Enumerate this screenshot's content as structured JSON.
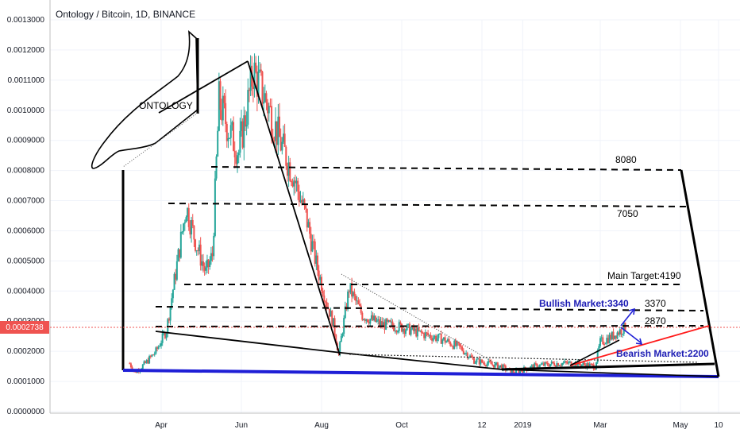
{
  "header": {
    "title": "Ontology / Bitcoin, 1D, BINANCE"
  },
  "current_price": {
    "label": "0.0002738",
    "value": 0.0002738,
    "color": "#ef5350"
  },
  "colors": {
    "up": "#26a69a",
    "down": "#ef5350",
    "support": "#1f1fd6",
    "trendline_red": "#ff1a1a",
    "bullish_text": "#1c1cb4"
  },
  "chart_data": {
    "type": "line",
    "title": "Ontology / Bitcoin, 1D, BINANCE",
    "xlabel": "",
    "ylabel": "",
    "x_tick_labels": [
      "Apr",
      "Jun",
      "Aug",
      "Oct",
      "12",
      "2019",
      "Mar",
      "May",
      "10"
    ],
    "y_tick_labels": [
      "0.0000000",
      "0.0001000",
      "0.0002000",
      "0.0003000",
      "0.0004000",
      "0.0005000",
      "0.0006000",
      "0.0007000",
      "0.0008000",
      "0.0009000",
      "0.0010000",
      "0.0011000",
      "0.0012000",
      "0.0013000"
    ],
    "ylim": [
      0,
      0.0013
    ],
    "grid": true,
    "series": [
      {
        "name": "",
        "x": [
          "2018-03-08",
          "2018-03-12",
          "2018-03-20",
          "2018-03-28",
          "2018-04-05",
          "2018-04-12",
          "2018-04-20",
          "2018-04-28",
          "2018-05-05",
          "2018-05-10",
          "2018-05-15",
          "2018-05-22",
          "2018-05-30",
          "2018-06-05",
          "2018-06-10",
          "2018-06-20",
          "2018-07-01",
          "2018-07-10",
          "2018-07-20",
          "2018-07-28",
          "2018-08-05",
          "2018-08-10",
          "2018-08-14",
          "2018-08-22",
          "2018-09-01",
          "2018-09-15",
          "2018-10-01",
          "2018-10-15",
          "2018-11-01",
          "2018-11-15",
          "2018-11-25",
          "2018-12-05",
          "2018-12-15",
          "2018-12-25",
          "2019-01-10",
          "2019-01-25",
          "2019-02-10",
          "2019-02-25",
          "2019-03-01",
          "2019-03-10",
          "2019-03-20"
        ],
        "values": [
          0.00016,
          0.00013,
          0.00016,
          0.0002,
          0.00027,
          0.00046,
          0.00068,
          0.00055,
          0.00046,
          0.00052,
          0.00103,
          0.00094,
          0.00086,
          0.001,
          0.00113,
          0.00103,
          0.00089,
          0.00079,
          0.00065,
          0.00049,
          0.00036,
          0.00029,
          0.00019,
          0.00041,
          0.00032,
          0.00029,
          0.00028,
          0.00026,
          0.00024,
          0.00021,
          0.00017,
          0.00016,
          0.00015,
          0.00013,
          0.00015,
          0.00016,
          0.00016,
          0.00015,
          0.00023,
          0.00025,
          0.00028
        ]
      }
    ],
    "annotations": [
      {
        "text": "ONTOLOGY",
        "kind": "shape_label"
      },
      {
        "text": "8080",
        "kind": "target_level"
      },
      {
        "text": "7050",
        "kind": "target_level"
      },
      {
        "text": "Main Target:4190",
        "kind": "target_level"
      },
      {
        "text": "3370",
        "kind": "target_level"
      },
      {
        "text": "2870",
        "kind": "target_level"
      },
      {
        "text": "Bullish Market:3340",
        "kind": "scenario"
      },
      {
        "text": "Bearish Market:2200",
        "kind": "scenario"
      }
    ]
  }
}
